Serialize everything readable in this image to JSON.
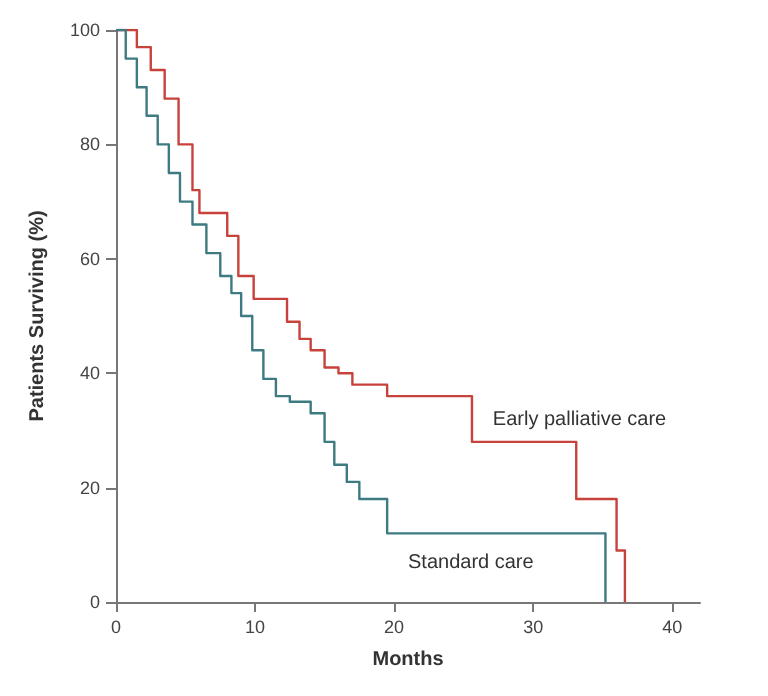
{
  "chart_data": {
    "type": "step",
    "xlabel": "Months",
    "ylabel": "Patients Surviving (%)",
    "xlim": [
      0,
      42
    ],
    "xticks": [
      0,
      10,
      20,
      30,
      40
    ],
    "ylim": [
      0,
      100
    ],
    "yticks": [
      0,
      20,
      40,
      60,
      80,
      100
    ],
    "grid": false,
    "legend": false,
    "series": [
      {
        "name": "Early palliative care",
        "color": "#c8423c",
        "x": [
          0,
          1.5,
          2.5,
          3.5,
          4.5,
          5.5,
          6,
          7.5,
          8,
          8.8,
          9.9,
          12.3,
          13.2,
          14,
          15,
          16,
          17,
          19.5,
          25.6,
          33.1,
          36,
          36.6
        ],
        "values": [
          100,
          97,
          93,
          88,
          80,
          72,
          68,
          68,
          64,
          57,
          53,
          49,
          46,
          44,
          41,
          40,
          38,
          36,
          28,
          18,
          9,
          0
        ]
      },
      {
        "name": "Standard care",
        "color": "#3d7a82",
        "x": [
          0,
          0.7,
          1.5,
          2.2,
          3,
          3.8,
          4.6,
          5.5,
          6.5,
          7.5,
          8.3,
          9,
          9.8,
          10.6,
          11.5,
          12.5,
          14,
          15,
          15.7,
          16.6,
          17.5,
          19.5,
          35.2
        ],
        "values": [
          100,
          95,
          90,
          85,
          80,
          75,
          70,
          66,
          61,
          57,
          54,
          50,
          44,
          39,
          36,
          35,
          33,
          28,
          24,
          21,
          18,
          12,
          0
        ]
      }
    ]
  }
}
